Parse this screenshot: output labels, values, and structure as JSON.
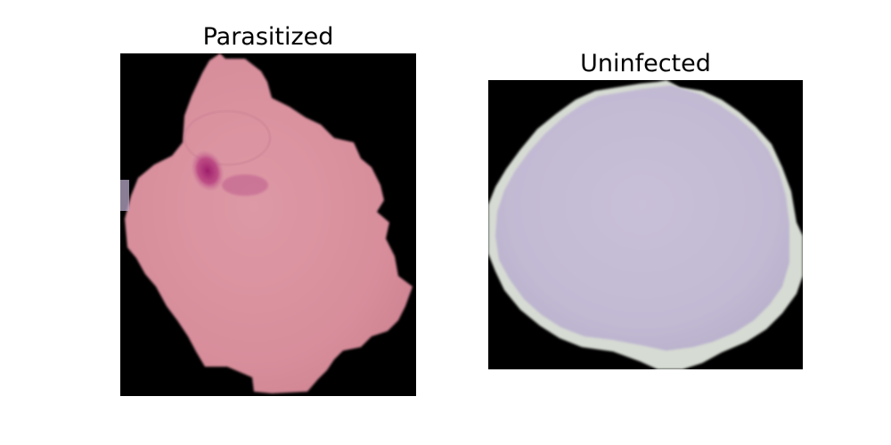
{
  "panels": [
    {
      "title": "Parasitized",
      "background_color": "#000000",
      "cell_color": "#d98f9c",
      "stain_color": "#a8246f"
    },
    {
      "title": "Uninfected",
      "background_color": "#000000",
      "cell_color": "#c4bbd4",
      "rim_color": "#d9ddd6"
    }
  ]
}
